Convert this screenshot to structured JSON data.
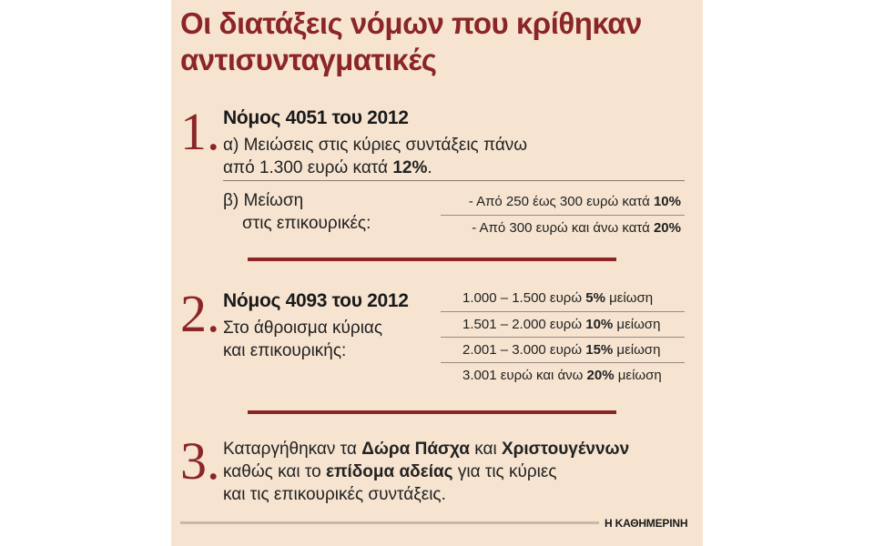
{
  "title": "Οι διατάξεις νόμων που κρίθηκαν αντισυνταγματικές",
  "sections": [
    {
      "number": "1",
      "law_title": "Νόμος 4051 του 2012",
      "a_text_pre": "α) Μειώσεις στις κύριες συντάξεις πάνω από 1.300 ευρώ κατά ",
      "a_text_bold": "12%",
      "a_text_post": ".",
      "b_label_line1": "β) Μείωση",
      "b_label_line2": "στις επικουρικές:",
      "b_items": [
        {
          "pre": "- Από 250 έως 300 ευρώ κατά ",
          "bold": "10%",
          "post": ""
        },
        {
          "pre": "- Από 300 ευρώ και άνω κατά ",
          "bold": "20%",
          "post": ""
        }
      ]
    },
    {
      "number": "2",
      "law_title": "Νόμος 4093 του 2012",
      "text_line1": "Στο άθροισμα κύριας",
      "text_line2": "και επικουρικής:",
      "tiers": [
        {
          "pre": "1.000 – 1.500 ευρώ ",
          "bold": "5%",
          "post": " μείωση"
        },
        {
          "pre": "1.501 – 2.000 ευρώ ",
          "bold": "10%",
          "post": " μείωση"
        },
        {
          "pre": "2.001 – 3.000 ευρώ ",
          "bold": "15%",
          "post": " μείωση"
        },
        {
          "pre": "3.001 ευρώ και άνω ",
          "bold": "20%",
          "post": " μείωση"
        }
      ]
    },
    {
      "number": "3",
      "l1_a": "Καταργήθηκαν τα ",
      "l1_b": "Δώρα Πάσχα",
      "l1_c": " και ",
      "l1_d": "Χριστουγέννων",
      "l2_a": "καθώς και το ",
      "l2_b": "επίδομα αδείας",
      "l2_c": " για τις κύριες",
      "l3": "και τις επικουρικές συντάξεις."
    }
  ],
  "brand": "Η ΚΑΘΗΜΕΡΙΝΗ",
  "colors": {
    "background": "#f6e4d1",
    "accent": "#8b2528",
    "text": "#1a1a1a"
  }
}
